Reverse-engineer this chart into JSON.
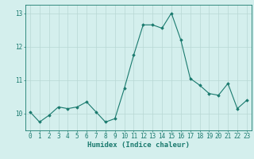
{
  "x": [
    0,
    1,
    2,
    3,
    4,
    5,
    6,
    7,
    8,
    9,
    10,
    11,
    12,
    13,
    14,
    15,
    16,
    17,
    18,
    19,
    20,
    21,
    22,
    23
  ],
  "y": [
    10.05,
    9.75,
    9.95,
    10.2,
    10.15,
    10.2,
    10.35,
    10.05,
    9.75,
    9.85,
    10.75,
    11.75,
    12.65,
    12.65,
    12.55,
    13.0,
    12.2,
    11.05,
    10.85,
    10.6,
    10.55,
    10.9,
    10.15,
    10.4
  ],
  "line_color": "#1a7a6e",
  "marker": "D",
  "marker_size": 1.8,
  "linewidth": 0.8,
  "bg_color": "#d4efed",
  "grid_color": "#b8d8d4",
  "xlabel": "Humidex (Indice chaleur)",
  "ylim": [
    9.5,
    13.25
  ],
  "xlim": [
    -0.5,
    23.5
  ],
  "yticks": [
    10,
    11,
    12,
    13
  ],
  "xticks": [
    0,
    1,
    2,
    3,
    4,
    5,
    6,
    7,
    8,
    9,
    10,
    11,
    12,
    13,
    14,
    15,
    16,
    17,
    18,
    19,
    20,
    21,
    22,
    23
  ],
  "xlabel_fontsize": 6.5,
  "tick_fontsize": 5.5,
  "tick_color": "#1a7a6e",
  "label_color": "#1a7a6e",
  "axis_color": "#1a7a6e"
}
